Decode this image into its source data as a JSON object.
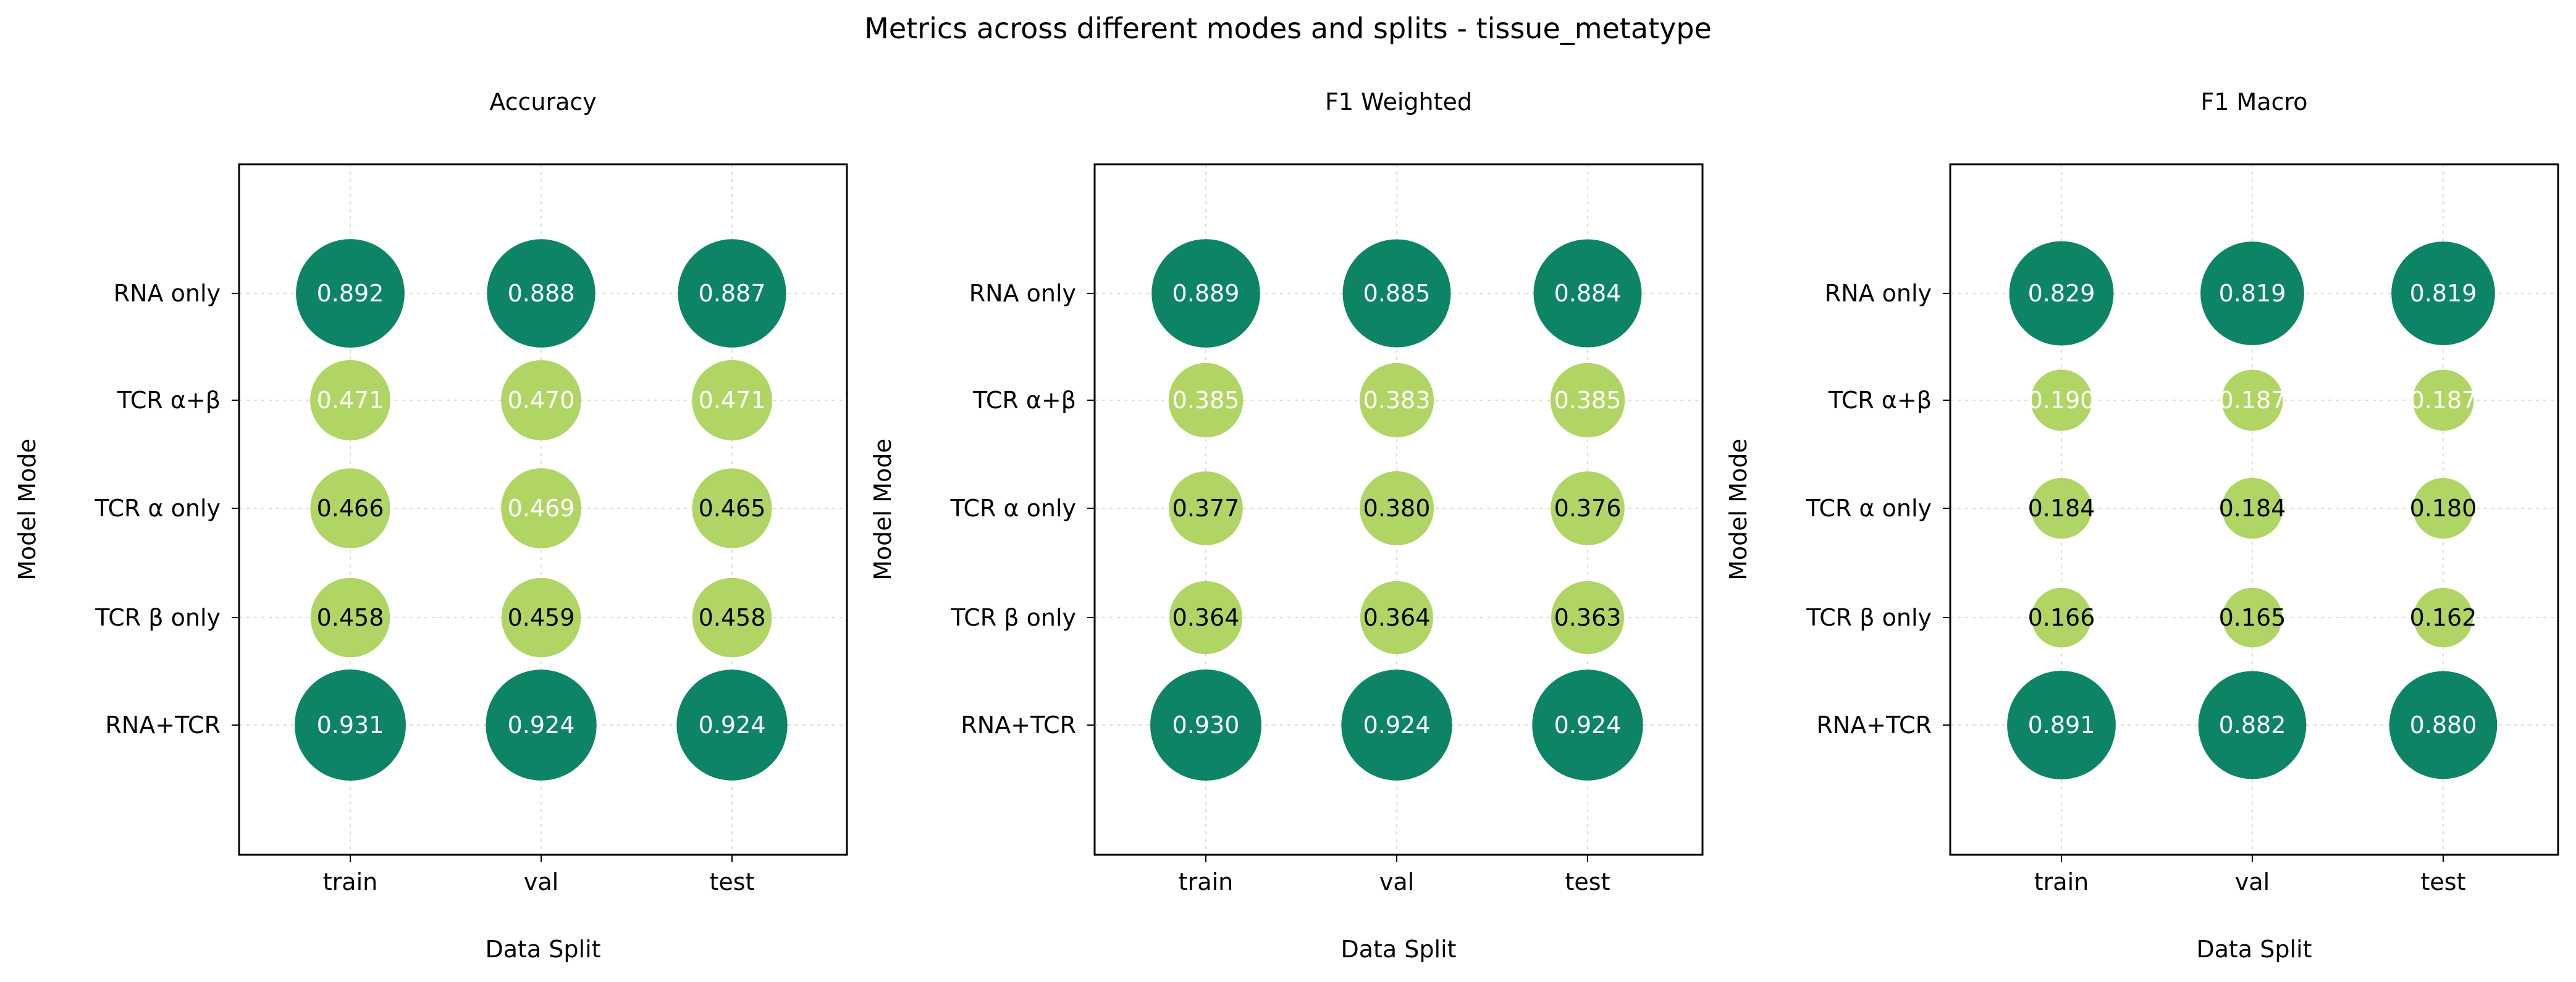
{
  "figure": {
    "title": "Metrics across different modes and splits - tissue_metatype"
  },
  "colors": {
    "high": "#0e8466",
    "low": "#b1d565",
    "text_on_high": "#ffffff",
    "text_on_low_light": "#ffffff",
    "text_on_low_dark": "#000000",
    "grid": "#dddddd",
    "axis": "#000000"
  },
  "chart_data": [
    {
      "type": "scatter",
      "title": "Accuracy",
      "xlabel": "Data Split",
      "ylabel": "Model Mode",
      "categories_x": [
        "train",
        "val",
        "test"
      ],
      "categories_y": [
        "RNA only",
        "TCR α+β",
        "TCR α only",
        "TCR β only",
        "RNA+TCR"
      ],
      "grid": true,
      "values": [
        [
          0.892,
          0.888,
          0.887
        ],
        [
          0.471,
          0.47,
          0.471
        ],
        [
          0.466,
          0.469,
          0.465
        ],
        [
          0.458,
          0.459,
          0.458
        ],
        [
          0.931,
          0.924,
          0.924
        ]
      ]
    },
    {
      "type": "scatter",
      "title": "F1 Weighted",
      "xlabel": "Data Split",
      "ylabel": "Model Mode",
      "categories_x": [
        "train",
        "val",
        "test"
      ],
      "categories_y": [
        "RNA only",
        "TCR α+β",
        "TCR α only",
        "TCR β only",
        "RNA+TCR"
      ],
      "grid": true,
      "values": [
        [
          0.889,
          0.885,
          0.884
        ],
        [
          0.385,
          0.383,
          0.385
        ],
        [
          0.377,
          0.38,
          0.376
        ],
        [
          0.364,
          0.364,
          0.363
        ],
        [
          0.93,
          0.924,
          0.924
        ]
      ]
    },
    {
      "type": "scatter",
      "title": "F1 Macro",
      "xlabel": "Data Split",
      "ylabel": "Model Mode",
      "categories_x": [
        "train",
        "val",
        "test"
      ],
      "categories_y": [
        "RNA only",
        "TCR α+β",
        "TCR α only",
        "TCR β only",
        "RNA+TCR"
      ],
      "grid": true,
      "values": [
        [
          0.829,
          0.819,
          0.819
        ],
        [
          0.19,
          0.187,
          0.187
        ],
        [
          0.184,
          0.184,
          0.18
        ],
        [
          0.166,
          0.165,
          0.162
        ],
        [
          0.891,
          0.882,
          0.88
        ]
      ]
    }
  ]
}
